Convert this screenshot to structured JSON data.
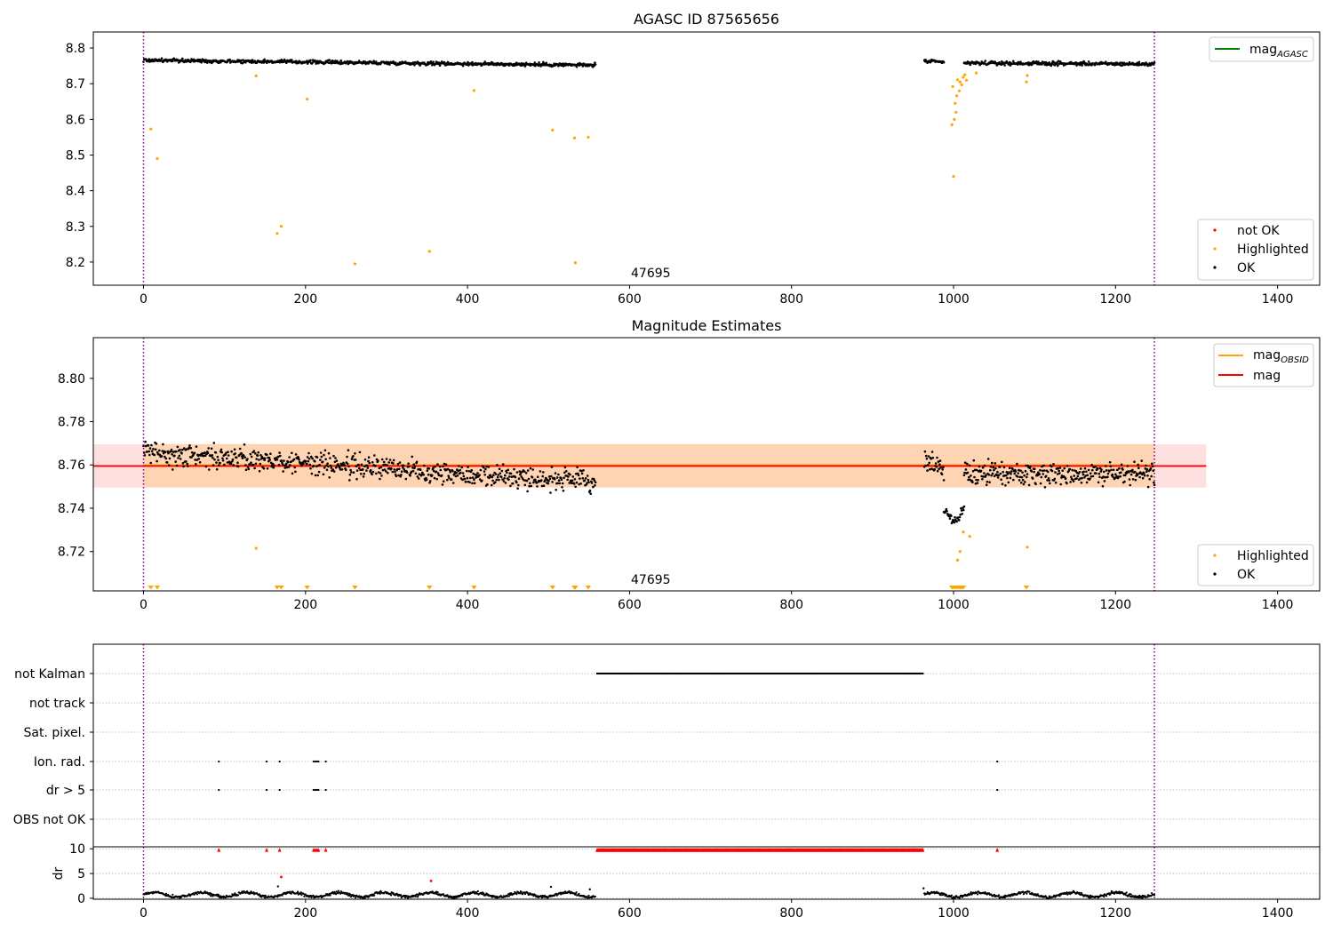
{
  "figure": {
    "obsid_label": "47695"
  },
  "chart_data": [
    {
      "type": "scatter",
      "panel": "agasc",
      "title": "AGASC ID 87565656",
      "xlim": [
        -62,
        1452
      ],
      "ylim": [
        8.135,
        8.845
      ],
      "xticks": [
        0,
        200,
        400,
        600,
        800,
        1000,
        1200,
        1400
      ],
      "yticks": [
        8.2,
        8.3,
        8.4,
        8.5,
        8.6,
        8.7,
        8.8
      ],
      "vlines": [
        0,
        1248
      ],
      "annotation": {
        "text": "47695",
        "x": 600,
        "y": 8.2
      },
      "legend_upper": [
        {
          "label": "mag",
          "subscript": "AGASC",
          "color": "#008000"
        }
      ],
      "legend_lower": [
        {
          "label": "not OK",
          "color": "#ff0000"
        },
        {
          "label": "Highlighted",
          "color": "#ffa500"
        },
        {
          "label": "OK",
          "color": "#000000"
        }
      ],
      "ok_segments": [
        {
          "x": [
            0,
            558
          ],
          "y": [
            8.766,
            8.752
          ],
          "noise": 0.008
        },
        {
          "x": [
            964,
            988
          ],
          "y": [
            8.763,
            8.76
          ],
          "noise": 0.008
        },
        {
          "x": [
            1013,
            1248
          ],
          "y": [
            8.758,
            8.755
          ],
          "noise": 0.008
        }
      ],
      "highlighted": [
        [
          9,
          8.573
        ],
        [
          17,
          8.49
        ],
        [
          139,
          8.722
        ],
        [
          165,
          8.28
        ],
        [
          170,
          8.3
        ],
        [
          202,
          8.657
        ],
        [
          261,
          8.195
        ],
        [
          353,
          8.23
        ],
        [
          408,
          8.681
        ],
        [
          505,
          8.57
        ],
        [
          532,
          8.548
        ],
        [
          533,
          8.198
        ],
        [
          549,
          8.55
        ],
        [
          998,
          8.585
        ],
        [
          999,
          8.692
        ],
        [
          1000,
          8.44
        ],
        [
          1001,
          8.6
        ],
        [
          1002,
          8.645
        ],
        [
          1003,
          8.62
        ],
        [
          1004,
          8.666
        ],
        [
          1005,
          8.711
        ],
        [
          1007,
          8.68
        ],
        [
          1008,
          8.705
        ],
        [
          1010,
          8.697
        ],
        [
          1012,
          8.718
        ],
        [
          1014,
          8.725
        ],
        [
          1016,
          8.71
        ],
        [
          1028,
          8.73
        ],
        [
          1090,
          8.705
        ],
        [
          1091,
          8.723
        ]
      ]
    },
    {
      "type": "scatter",
      "panel": "estimates",
      "title": "Magnitude Estimates",
      "xlim": [
        -62,
        1452
      ],
      "ylim": [
        8.7018,
        8.8188
      ],
      "xticks": [
        0,
        200,
        400,
        600,
        800,
        1000,
        1200,
        1400
      ],
      "yticks": [
        8.72,
        8.74,
        8.76,
        8.78,
        8.8
      ],
      "vlines": [
        0,
        1248
      ],
      "annotation": {
        "text": "47695",
        "x": 600,
        "y": 8.704
      },
      "mag": 8.7595,
      "mag_band": [
        8.7495,
        8.7695
      ],
      "mag_obsid": 8.7598,
      "mag_obsid_band": [
        8.7498,
        8.7698
      ],
      "legend_upper": [
        {
          "label": "mag",
          "subscript": "OBSID",
          "color": "#ffa500"
        },
        {
          "label": "mag",
          "color": "#ff0000"
        }
      ],
      "legend_lower": [
        {
          "label": "Highlighted",
          "color": "#ffa500"
        },
        {
          "label": "OK",
          "color": "#000000"
        }
      ],
      "ok_segments": [
        {
          "x": [
            0,
            558
          ],
          "y": [
            8.766,
            8.752
          ],
          "noise": 0.008
        },
        {
          "x": [
            964,
            988
          ],
          "y": [
            8.763,
            8.757
          ],
          "noise": 0.008
        },
        {
          "x": [
            988,
            1013
          ],
          "y": [
            8.74,
            8.74
          ],
          "noise": 0.006
        },
        {
          "x": [
            1013,
            1248
          ],
          "y": [
            8.756,
            8.756
          ],
          "noise": 0.008
        }
      ],
      "highlighted": [
        [
          139,
          8.7215
        ],
        [
          1005,
          8.716
        ],
        [
          1008,
          8.72
        ],
        [
          1012,
          8.729
        ],
        [
          1020,
          8.727
        ],
        [
          1091,
          8.722
        ]
      ],
      "offscale_markers": [
        9,
        17,
        165,
        170,
        202,
        261,
        353,
        408,
        505,
        532,
        533,
        549,
        998,
        1000,
        1002,
        1004,
        1006,
        1008,
        1010,
        1012,
        1090
      ]
    },
    {
      "type": "scatter",
      "panel": "flags",
      "xlim": [
        -62,
        1452
      ],
      "categories": [
        "not Kalman",
        "not track",
        "Sat. pixel.",
        "Ion. rad.",
        "dr > 5",
        "OBS not OK"
      ],
      "vlines": [
        0,
        1248
      ],
      "not_kalman_range": [
        560,
        963
      ],
      "ion_rad_x": [
        93,
        152,
        168,
        210,
        212,
        214,
        216,
        225,
        1054
      ],
      "dr_gt5_x": [
        93,
        152,
        168,
        210,
        212,
        214,
        216,
        225,
        1054
      ]
    },
    {
      "type": "scatter",
      "panel": "dr",
      "xlim": [
        -62,
        1452
      ],
      "ylim": [
        -0.2,
        10.4
      ],
      "yticks": [
        0,
        5,
        10
      ],
      "ylabel": "dr",
      "xticks": [
        0,
        200,
        400,
        600,
        800,
        1000,
        1200,
        1400
      ],
      "vlines": [
        0,
        1248
      ],
      "ok_segments": [
        {
          "x": [
            0,
            558
          ]
        },
        {
          "x": [
            964,
            1248
          ]
        }
      ],
      "clipped_range": [
        560,
        963
      ],
      "clipped_x": [
        93,
        152,
        168,
        210,
        212,
        214,
        216,
        225,
        1054
      ],
      "notok_points": [
        [
          170,
          4.3
        ],
        [
          355,
          3.5
        ]
      ],
      "extra_points": [
        [
          166,
          2.4
        ],
        [
          503,
          2.3
        ],
        [
          551,
          1.8
        ],
        [
          963,
          2.0
        ]
      ]
    }
  ]
}
